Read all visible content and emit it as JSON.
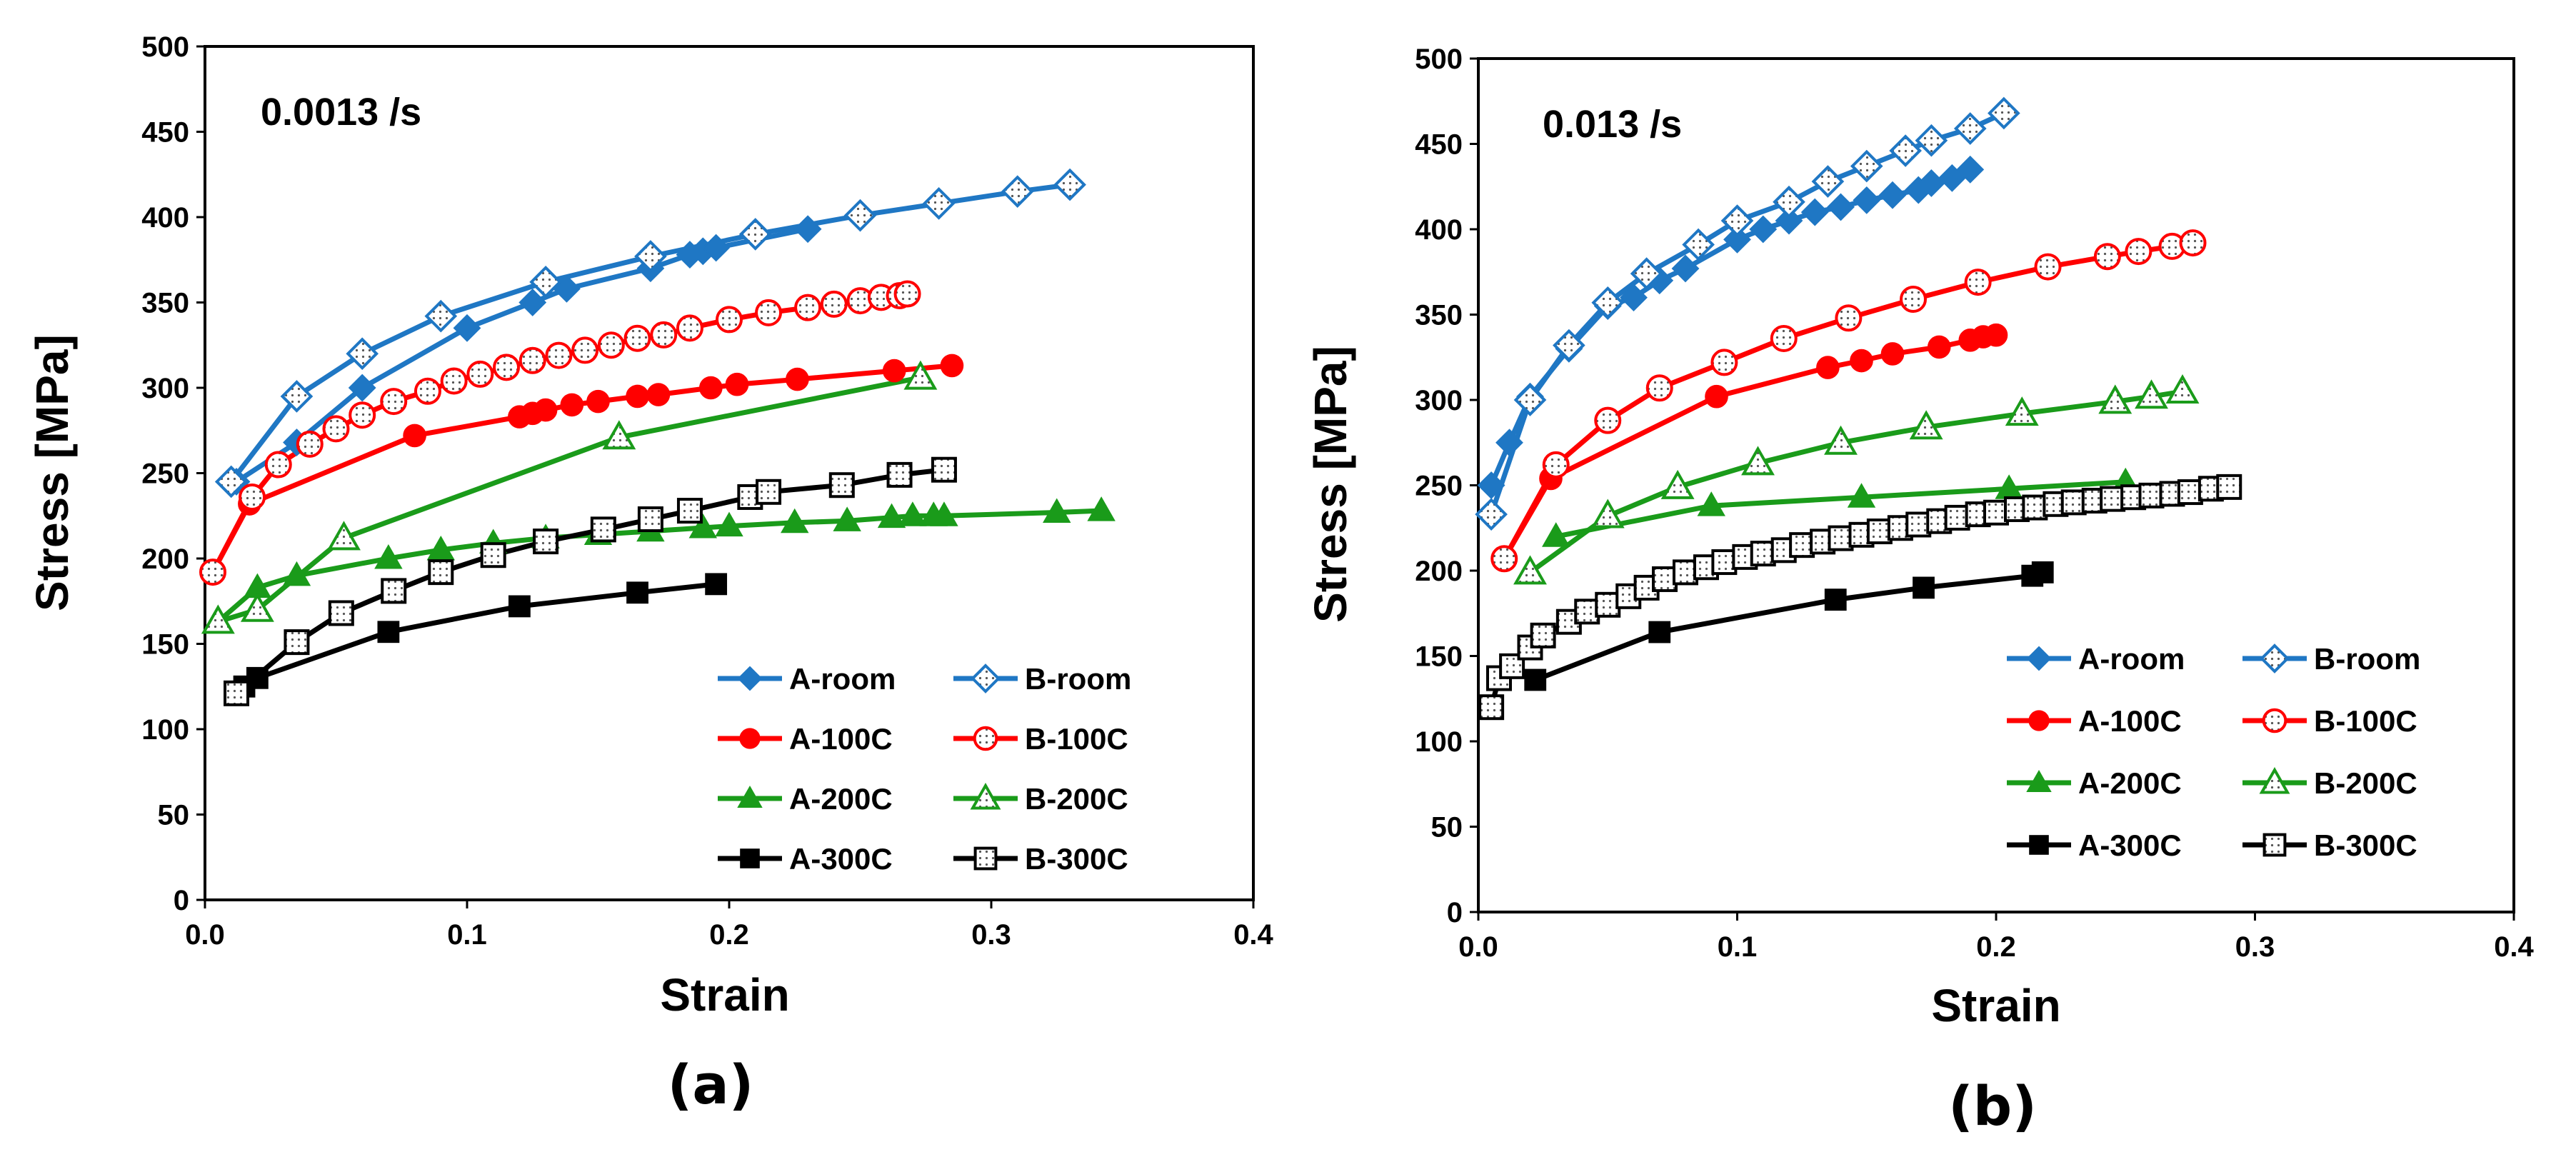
{
  "figure": {
    "captions": [
      "(a)",
      "(b)"
    ]
  },
  "colors": {
    "blue": "#1f77c4",
    "red": "#ff0000",
    "green": "#1a9b1a",
    "black": "#000000"
  },
  "marker_shapes": {
    "room": "diamond",
    "100C": "circle",
    "200C": "triangle",
    "300C": "square"
  },
  "chart_data": [
    {
      "type": "line",
      "panel": "(a)",
      "rate_label": "0.0013 /s",
      "xlabel": "Strain",
      "ylabel": "Stress [MPa]",
      "xlim": [
        0,
        0.4
      ],
      "ylim": [
        0,
        500
      ],
      "xticks": [
        0,
        0.1,
        0.2,
        0.3,
        0.4
      ],
      "xtick_labels": [
        "0.0",
        "0.1",
        "0.2",
        "0.3",
        "0.4"
      ],
      "yticks": [
        0,
        50,
        100,
        150,
        200,
        250,
        300,
        350,
        400,
        450,
        500
      ],
      "ytick_labels": [
        "0",
        "50",
        "100",
        "150",
        "200",
        "250",
        "300",
        "350",
        "400",
        "450",
        "500"
      ],
      "legend_position": "bottom-right",
      "series": [
        {
          "name": "A-room",
          "color": "blue",
          "marker": "diamond",
          "filled": true,
          "points": [
            [
              0.012,
              245
            ],
            [
              0.035,
              268
            ],
            [
              0.06,
              300
            ],
            [
              0.1,
              335
            ],
            [
              0.125,
              350
            ],
            [
              0.138,
              358
            ],
            [
              0.17,
              370
            ],
            [
              0.185,
              378
            ],
            [
              0.19,
              380
            ],
            [
              0.195,
              382
            ],
            [
              0.23,
              393
            ]
          ]
        },
        {
          "name": "B-room",
          "color": "blue",
          "marker": "diamond",
          "filled": false,
          "points": [
            [
              0.01,
              245
            ],
            [
              0.035,
              295
            ],
            [
              0.06,
              320
            ],
            [
              0.09,
              342
            ],
            [
              0.13,
              362
            ],
            [
              0.17,
              377
            ],
            [
              0.21,
              390
            ],
            [
              0.25,
              401
            ],
            [
              0.28,
              408
            ],
            [
              0.31,
              415
            ],
            [
              0.33,
              419
            ]
          ]
        },
        {
          "name": "A-100C",
          "color": "red",
          "marker": "circle",
          "filled": true,
          "points": [
            [
              0.003,
              192
            ],
            [
              0.017,
              232
            ],
            [
              0.08,
              272
            ],
            [
              0.12,
              283
            ],
            [
              0.125,
              285
            ],
            [
              0.13,
              287
            ],
            [
              0.14,
              290
            ],
            [
              0.15,
              292
            ],
            [
              0.165,
              295
            ],
            [
              0.173,
              296
            ],
            [
              0.193,
              300
            ],
            [
              0.203,
              302
            ],
            [
              0.226,
              305
            ],
            [
              0.263,
              310
            ],
            [
              0.285,
              313
            ]
          ]
        },
        {
          "name": "B-100C",
          "color": "red",
          "marker": "circle",
          "filled": false,
          "points": [
            [
              0.003,
              192
            ],
            [
              0.018,
              236
            ],
            [
              0.028,
              255
            ],
            [
              0.04,
              267
            ],
            [
              0.05,
              276
            ],
            [
              0.06,
              284
            ],
            [
              0.072,
              292
            ],
            [
              0.085,
              298
            ],
            [
              0.095,
              304
            ],
            [
              0.105,
              308
            ],
            [
              0.115,
              312
            ],
            [
              0.125,
              316
            ],
            [
              0.135,
              319
            ],
            [
              0.145,
              322
            ],
            [
              0.155,
              325
            ],
            [
              0.165,
              329
            ],
            [
              0.175,
              331
            ],
            [
              0.185,
              335
            ],
            [
              0.2,
              340
            ],
            [
              0.215,
              344
            ],
            [
              0.23,
              347
            ],
            [
              0.24,
              349
            ],
            [
              0.25,
              351
            ],
            [
              0.258,
              353
            ],
            [
              0.265,
              354
            ],
            [
              0.268,
              355
            ]
          ]
        },
        {
          "name": "A-200C",
          "color": "green",
          "marker": "triangle",
          "filled": true,
          "points": [
            [
              0.005,
              163
            ],
            [
              0.02,
              183
            ],
            [
              0.035,
              190
            ],
            [
              0.07,
              200
            ],
            [
              0.09,
              205
            ],
            [
              0.11,
              209
            ],
            [
              0.13,
              212
            ],
            [
              0.15,
              214
            ],
            [
              0.17,
              216
            ],
            [
              0.19,
              218
            ],
            [
              0.2,
              219
            ],
            [
              0.225,
              221
            ],
            [
              0.245,
              222
            ],
            [
              0.262,
              224
            ],
            [
              0.27,
              225
            ],
            [
              0.278,
              225
            ],
            [
              0.282,
              225
            ],
            [
              0.325,
              227
            ],
            [
              0.342,
              228
            ]
          ]
        },
        {
          "name": "B-200C",
          "color": "green",
          "marker": "triangle",
          "filled": false,
          "points": [
            [
              0.005,
              163
            ],
            [
              0.02,
              170
            ],
            [
              0.053,
              212
            ],
            [
              0.158,
              271
            ],
            [
              0.273,
              306
            ]
          ]
        },
        {
          "name": "A-300C",
          "color": "black",
          "marker": "square",
          "filled": true,
          "points": [
            [
              0.015,
              125
            ],
            [
              0.02,
              130
            ],
            [
              0.07,
              157
            ],
            [
              0.12,
              172
            ],
            [
              0.165,
              180
            ],
            [
              0.195,
              185
            ]
          ]
        },
        {
          "name": "B-300C",
          "color": "black",
          "marker": "square",
          "filled": false,
          "points": [
            [
              0.012,
              121
            ],
            [
              0.035,
              151
            ],
            [
              0.052,
              168
            ],
            [
              0.072,
              181
            ],
            [
              0.09,
              192
            ],
            [
              0.11,
              202
            ],
            [
              0.13,
              210
            ],
            [
              0.152,
              217
            ],
            [
              0.17,
              223
            ],
            [
              0.185,
              228
            ],
            [
              0.208,
              236
            ],
            [
              0.215,
              239
            ],
            [
              0.243,
              243
            ],
            [
              0.265,
              249
            ],
            [
              0.282,
              252
            ]
          ]
        }
      ]
    },
    {
      "type": "line",
      "panel": "(b)",
      "rate_label": "0.013 /s",
      "xlabel": "Strain",
      "ylabel": "Stress [MPa]",
      "xlim": [
        0,
        0.4
      ],
      "ylim": [
        0,
        500
      ],
      "xticks": [
        0,
        0.1,
        0.2,
        0.3,
        0.4
      ],
      "xtick_labels": [
        "0.0",
        "0.1",
        "0.2",
        "0.3",
        "0.4"
      ],
      "yticks": [
        0,
        50,
        100,
        150,
        200,
        250,
        300,
        350,
        400,
        450,
        500
      ],
      "ytick_labels": [
        "0",
        "50",
        "100",
        "150",
        "200",
        "250",
        "300",
        "350",
        "400",
        "450",
        "500"
      ],
      "legend_position": "bottom-right",
      "series": [
        {
          "name": "A-room",
          "color": "blue",
          "marker": "diamond",
          "filled": true,
          "points": [
            [
              0.005,
              250
            ],
            [
              0.012,
              275
            ],
            [
              0.02,
              302
            ],
            [
              0.035,
              330
            ],
            [
              0.05,
              355
            ],
            [
              0.06,
              360
            ],
            [
              0.07,
              370
            ],
            [
              0.08,
              377
            ],
            [
              0.1,
              394
            ],
            [
              0.11,
              400
            ],
            [
              0.12,
              405
            ],
            [
              0.13,
              410
            ],
            [
              0.14,
              413
            ],
            [
              0.15,
              417
            ],
            [
              0.16,
              420
            ],
            [
              0.17,
              423
            ],
            [
              0.175,
              427
            ],
            [
              0.183,
              430
            ],
            [
              0.19,
              435
            ]
          ]
        },
        {
          "name": "B-room",
          "color": "blue",
          "marker": "diamond",
          "filled": false,
          "points": [
            [
              0.005,
              233
            ],
            [
              0.02,
              300
            ],
            [
              0.035,
              332
            ],
            [
              0.05,
              357
            ],
            [
              0.065,
              374
            ],
            [
              0.085,
              391
            ],
            [
              0.1,
              405
            ],
            [
              0.12,
              416
            ],
            [
              0.135,
              428
            ],
            [
              0.15,
              437
            ],
            [
              0.165,
              446
            ],
            [
              0.175,
              452
            ],
            [
              0.19,
              459
            ],
            [
              0.203,
              468
            ]
          ]
        },
        {
          "name": "A-100C",
          "color": "red",
          "marker": "circle",
          "filled": true,
          "points": [
            [
              0.01,
              207
            ],
            [
              0.028,
              254
            ],
            [
              0.092,
              302
            ],
            [
              0.135,
              319
            ],
            [
              0.148,
              323
            ],
            [
              0.16,
              327
            ],
            [
              0.178,
              331
            ],
            [
              0.19,
              335
            ],
            [
              0.195,
              337
            ],
            [
              0.2,
              338
            ]
          ]
        },
        {
          "name": "B-100C",
          "color": "red",
          "marker": "circle",
          "filled": false,
          "points": [
            [
              0.01,
              207
            ],
            [
              0.03,
              262
            ],
            [
              0.05,
              288
            ],
            [
              0.07,
              307
            ],
            [
              0.095,
              322
            ],
            [
              0.118,
              336
            ],
            [
              0.143,
              348
            ],
            [
              0.168,
              359
            ],
            [
              0.193,
              369
            ],
            [
              0.22,
              378
            ],
            [
              0.243,
              384
            ],
            [
              0.255,
              387
            ],
            [
              0.268,
              390
            ],
            [
              0.276,
              392
            ]
          ]
        },
        {
          "name": "A-200C",
          "color": "green",
          "marker": "triangle",
          "filled": true,
          "points": [
            [
              0.03,
              220
            ],
            [
              0.09,
              238
            ],
            [
              0.148,
              243
            ],
            [
              0.205,
              248
            ],
            [
              0.25,
              252
            ]
          ]
        },
        {
          "name": "B-200C",
          "color": "green",
          "marker": "triangle",
          "filled": false,
          "points": [
            [
              0.02,
              199
            ],
            [
              0.05,
              232
            ],
            [
              0.077,
              249
            ],
            [
              0.108,
              263
            ],
            [
              0.14,
              275
            ],
            [
              0.173,
              284
            ],
            [
              0.21,
              292
            ],
            [
              0.246,
              299
            ],
            [
              0.26,
              302
            ],
            [
              0.272,
              305
            ]
          ]
        },
        {
          "name": "A-300C",
          "color": "black",
          "marker": "square",
          "filled": true,
          "points": [
            [
              0.022,
              136
            ],
            [
              0.07,
              164
            ],
            [
              0.138,
              183
            ],
            [
              0.172,
              190
            ],
            [
              0.214,
              197
            ],
            [
              0.218,
              199
            ]
          ]
        },
        {
          "name": "B-300C",
          "color": "black",
          "marker": "square",
          "filled": false,
          "points": [
            [
              0.005,
              120
            ],
            [
              0.008,
              137
            ],
            [
              0.013,
              144
            ],
            [
              0.02,
              155
            ],
            [
              0.025,
              162
            ],
            [
              0.035,
              170
            ],
            [
              0.042,
              176
            ],
            [
              0.05,
              180
            ],
            [
              0.058,
              185
            ],
            [
              0.065,
              190
            ],
            [
              0.072,
              195
            ],
            [
              0.08,
              199
            ],
            [
              0.088,
              202
            ],
            [
              0.095,
              205
            ],
            [
              0.103,
              208
            ],
            [
              0.11,
              210
            ],
            [
              0.118,
              212
            ],
            [
              0.125,
              215
            ],
            [
              0.133,
              217
            ],
            [
              0.14,
              219
            ],
            [
              0.148,
              221
            ],
            [
              0.155,
              223
            ],
            [
              0.163,
              225
            ],
            [
              0.17,
              227
            ],
            [
              0.178,
              229
            ],
            [
              0.185,
              231
            ],
            [
              0.193,
              233
            ],
            [
              0.2,
              234
            ],
            [
              0.208,
              236
            ],
            [
              0.215,
              237
            ],
            [
              0.223,
              239
            ],
            [
              0.23,
              240
            ],
            [
              0.238,
              241
            ],
            [
              0.245,
              242
            ],
            [
              0.253,
              243
            ],
            [
              0.26,
              244
            ],
            [
              0.268,
              245
            ],
            [
              0.275,
              246
            ],
            [
              0.283,
              248
            ],
            [
              0.29,
              249
            ]
          ]
        }
      ]
    }
  ]
}
